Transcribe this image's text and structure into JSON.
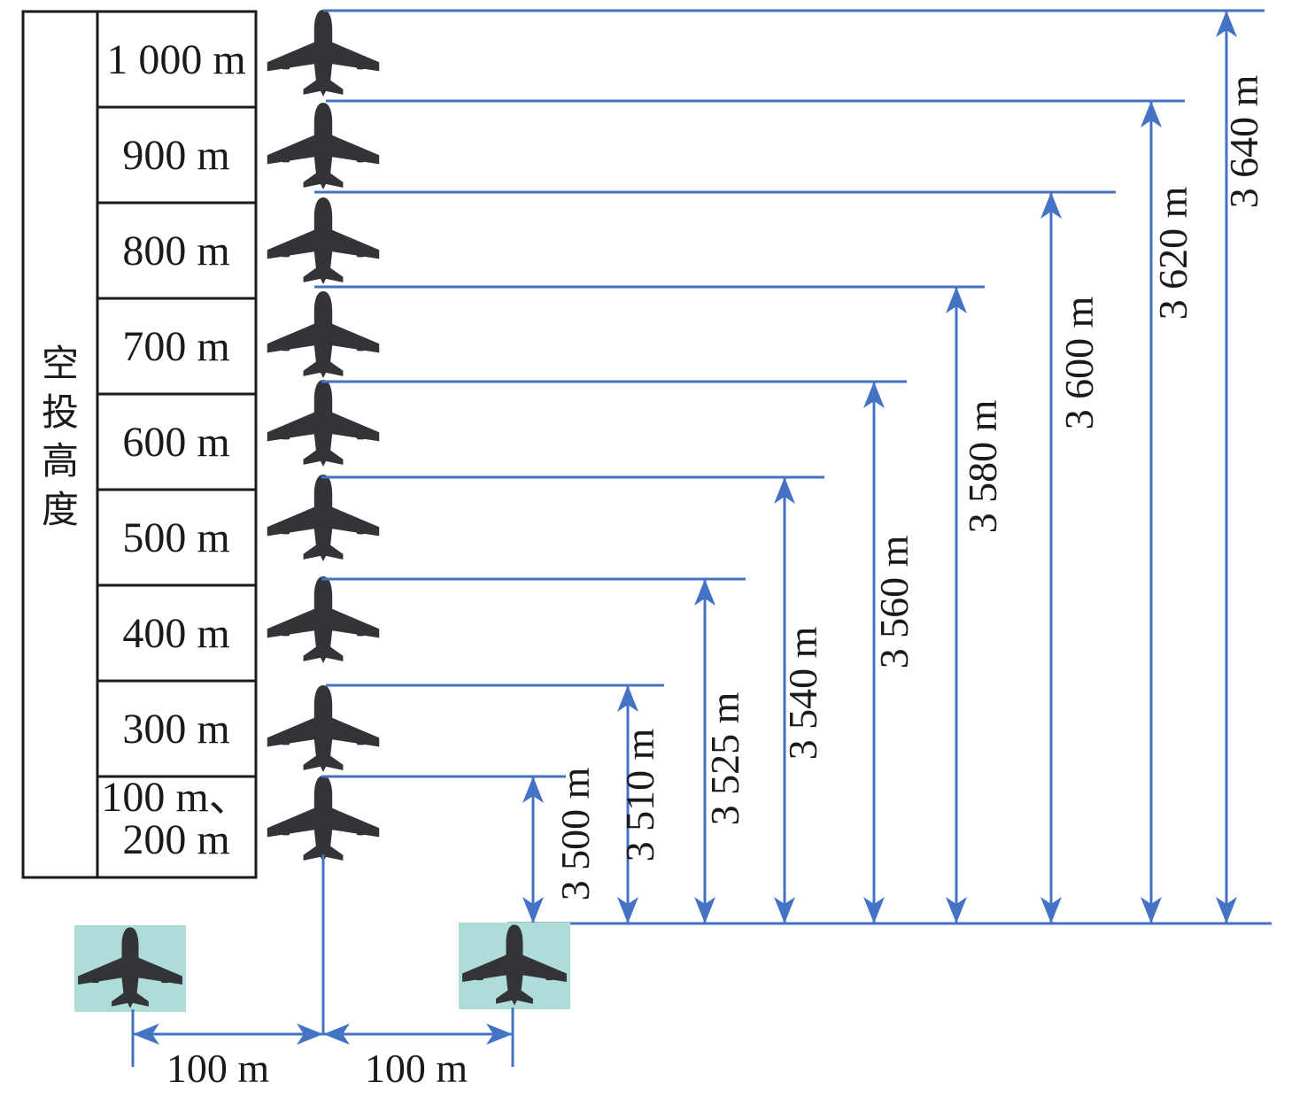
{
  "table": {
    "header": "空投高度",
    "rows": [
      {
        "lines": [
          "1 000 m"
        ],
        "height_m": 1000
      },
      {
        "lines": [
          "900 m"
        ],
        "height_m": 900
      },
      {
        "lines": [
          "800 m"
        ],
        "height_m": 800
      },
      {
        "lines": [
          "700 m"
        ],
        "height_m": 700
      },
      {
        "lines": [
          "600 m"
        ],
        "height_m": 600
      },
      {
        "lines": [
          "500 m"
        ],
        "height_m": 500
      },
      {
        "lines": [
          "400 m"
        ],
        "height_m": 400
      },
      {
        "lines": [
          "300 m"
        ],
        "height_m": 300
      },
      {
        "lines": [
          "100 m、",
          "200 m"
        ],
        "height_m": 200
      }
    ]
  },
  "distances": [
    "3 500 m",
    "3 510 m",
    "3 525 m",
    "3 540 m",
    "3 560 m",
    "3 580 m",
    "3 600 m",
    "3 620 m",
    "3 640 m"
  ],
  "spacing": [
    "100 m",
    "100 m"
  ],
  "colors": {
    "line": "#4472c4",
    "plane": "#333438",
    "tile": "#aedcd8",
    "text": "#1a1a1a"
  },
  "icons": {
    "aircraft": "airplane-icon"
  }
}
